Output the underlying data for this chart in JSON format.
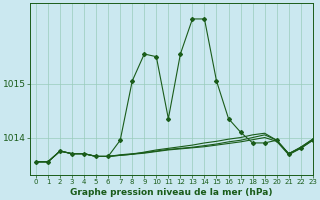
{
  "bg_color": "#cbe8f0",
  "grid_color": "#99ccbb",
  "line_color": "#1a5c1a",
  "xlabel": "Graphe pression niveau de la mer (hPa)",
  "xlim": [
    -0.5,
    23
  ],
  "ylim": [
    1013.3,
    1016.5
  ],
  "hours": [
    0,
    1,
    2,
    3,
    4,
    5,
    6,
    7,
    8,
    9,
    10,
    11,
    12,
    13,
    14,
    15,
    16,
    17,
    18,
    19,
    20,
    21,
    22,
    23
  ],
  "series_spike": [
    1013.55,
    1013.55,
    1013.75,
    1013.7,
    1013.7,
    1013.65,
    1013.65,
    1013.95,
    1015.05,
    1015.55,
    1015.5,
    1014.35,
    1015.55,
    1016.2,
    1016.2,
    1015.05,
    1014.35,
    1014.1,
    1013.9,
    1013.9,
    1013.95,
    1013.7,
    1013.8,
    1013.95
  ],
  "series_flat1": [
    1013.55,
    1013.55,
    1013.75,
    1013.7,
    1013.7,
    1013.65,
    1013.65,
    1013.68,
    1013.7,
    1013.72,
    1013.75,
    1013.78,
    1013.8,
    1013.82,
    1013.85,
    1013.88,
    1013.92,
    1013.95,
    1014.0,
    1014.05,
    1013.95,
    1013.7,
    1013.82,
    1013.97
  ],
  "series_flat2": [
    1013.55,
    1013.55,
    1013.75,
    1013.7,
    1013.7,
    1013.65,
    1013.65,
    1013.67,
    1013.69,
    1013.71,
    1013.74,
    1013.77,
    1013.79,
    1013.81,
    1013.83,
    1013.86,
    1013.89,
    1013.92,
    1013.96,
    1014.0,
    1013.93,
    1013.68,
    1013.8,
    1013.95
  ],
  "series_flat3": [
    1013.55,
    1013.55,
    1013.75,
    1013.7,
    1013.7,
    1013.65,
    1013.65,
    1013.67,
    1013.69,
    1013.73,
    1013.77,
    1013.8,
    1013.83,
    1013.86,
    1013.9,
    1013.93,
    1013.97,
    1014.0,
    1014.05,
    1014.08,
    1013.95,
    1013.7,
    1013.82,
    1013.97
  ],
  "yticks": [
    1014,
    1015
  ],
  "xticks": [
    0,
    1,
    2,
    3,
    4,
    5,
    6,
    7,
    8,
    9,
    10,
    11,
    12,
    13,
    14,
    15,
    16,
    17,
    18,
    19,
    20,
    21,
    22,
    23
  ]
}
